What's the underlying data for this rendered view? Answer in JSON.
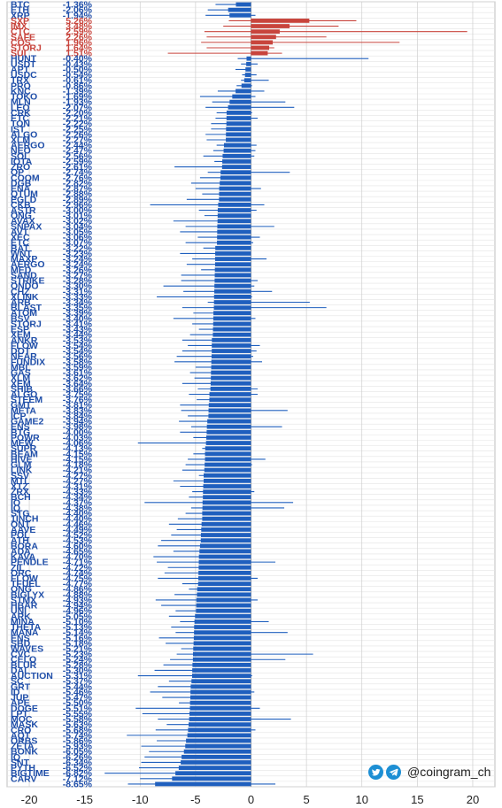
{
  "chart_data": {
    "type": "bar",
    "orientation": "horizontal",
    "unit": "%",
    "xlim": [
      -22,
      22
    ],
    "xticks": [
      -20,
      -15,
      -10,
      -5,
      0,
      5,
      10,
      15,
      20
    ],
    "grid": true,
    "positive_color": "#c8443c",
    "negative_color": "#1f5fbe",
    "label_color_negative": "#1f4ea8",
    "label_color_positive": "#c8443c",
    "categories": [
      "BTC",
      "ETH",
      "XRP",
      "SXP",
      "IMX",
      "CTC",
      "SAFE",
      "COS",
      "STORJ",
      "SUI",
      "HUNT",
      "USDT",
      "APT",
      "USDC",
      "TRX",
      "PRO",
      "KNC",
      "TOKO",
      "MLN",
      "LEO",
      "CRK",
      "ETC",
      "TON",
      "IST",
      "ALGO",
      "XLM",
      "AERGO",
      "NEO",
      "SOL",
      "IOTA",
      "ZRO",
      "OP",
      "COOM",
      "DGB",
      "ENA",
      "QTUM",
      "EGLD",
      "CKB",
      "ASTR",
      "ONG",
      "AVAX",
      "SNPAX",
      "AVT",
      "XEC",
      "ETC",
      "BAT",
      "WNT",
      "MAXP",
      "AERGO",
      "MED",
      "SAND",
      "STRIKE",
      "ONDO",
      "CHZ",
      "XLINK",
      "ARB",
      "BLAST",
      "ATOM",
      "BSV",
      "STORJ",
      "ESP",
      "XEM",
      "ANKR",
      "FLOW",
      "DOT",
      "NEAR",
      "FUNDIX",
      "MBL",
      "GAS",
      "XLM",
      "XEM",
      "SHIB",
      "ALGO",
      "STEEM",
      "GMT",
      "META",
      "ICP",
      "GAME2",
      "ENS",
      "BTG",
      "POWR",
      "MEW",
      "SUPR",
      "BEAM",
      "HIVE",
      "GLM",
      "LINK",
      "SSV",
      "MTL",
      "XTZ",
      "ZRX",
      "BCH",
      "IO",
      "IQ",
      "STG",
      "1INCH",
      "ONT",
      "AAVE",
      "POL",
      "ATH",
      "BORA",
      "ADA",
      "KAVA",
      "PENDLE",
      "ZIL",
      "ORC",
      "FLOW",
      "TFUEL",
      "ONG",
      "BIGLYX",
      "STMX",
      "HBAR",
      "UNI",
      "ARK",
      "MINA",
      "THETA",
      "MANA",
      "ENS",
      "SBD",
      "WAVES",
      "CVC",
      "CELO",
      "BLUR",
      "DAI",
      "AUCTION",
      "SC",
      "GRT",
      "ID",
      "JUP",
      "APE",
      "DOGE",
      "LPT",
      "MOC",
      "MASK",
      "CRO",
      "AQT",
      "ORBS",
      "ZETA",
      "BONK",
      "IQ",
      "SNT",
      "PYTH",
      "BIGTIME",
      "CARV"
    ],
    "values": [
      -1.36,
      -2.06,
      -1.94,
      5.26,
      3.48,
      2.59,
      2.26,
      1.96,
      1.64,
      1.51,
      -0.4,
      -0.43,
      -0.5,
      -0.54,
      -0.61,
      -0.86,
      -1.39,
      -1.69,
      -1.93,
      -2.07,
      -2.2,
      -2.21,
      -2.22,
      -2.25,
      -2.26,
      -2.27,
      -2.44,
      -2.47,
      -2.56,
      -2.59,
      -2.61,
      -2.74,
      -2.76,
      -2.82,
      -2.87,
      -2.88,
      -2.89,
      -2.96,
      -3.0,
      -3.01,
      -3.02,
      -3.04,
      -3.05,
      -3.06,
      -3.07,
      -3.22,
      -3.23,
      -3.24,
      -3.24,
      -3.26,
      -3.27,
      -3.28,
      -3.3,
      -3.31,
      -3.33,
      -3.34,
      -3.35,
      -3.39,
      -3.4,
      -3.41,
      -3.43,
      -3.44,
      -3.53,
      -3.54,
      -3.54,
      -3.56,
      -3.58,
      -3.59,
      -3.61,
      -3.62,
      -3.64,
      -3.66,
      -3.75,
      -3.76,
      -3.81,
      -3.83,
      -3.84,
      -3.94,
      -3.98,
      -4.0,
      -4.03,
      -4.06,
      -4.13,
      -4.15,
      -4.15,
      -4.18,
      -4.21,
      -4.27,
      -4.27,
      -4.31,
      -4.33,
      -4.34,
      -4.37,
      -4.38,
      -4.4,
      -4.4,
      -4.46,
      -4.49,
      -4.52,
      -4.53,
      -4.6,
      -4.65,
      -4.7,
      -4.71,
      -4.72,
      -4.74,
      -4.75,
      -4.77,
      -4.86,
      -4.88,
      -4.93,
      -4.94,
      -4.96,
      -5.05,
      -5.1,
      -5.13,
      -5.14,
      -5.16,
      -5.18,
      -5.21,
      -5.23,
      -5.24,
      -5.28,
      -5.3,
      -5.31,
      -5.37,
      -5.44,
      -5.46,
      -5.47,
      -5.5,
      -5.51,
      -5.55,
      -5.58,
      -5.63,
      -5.68,
      -5.74,
      -5.86,
      -5.93,
      -6.05,
      -6.26,
      -6.34,
      -6.52,
      -6.82,
      -7.12,
      -8.65
    ],
    "labels": [
      "-1.36%",
      "-2.06%",
      "-1.94%",
      "5.26%",
      "3.48%",
      "2.59%",
      "2.26%",
      "1.96%",
      "1.64%",
      "1.51%",
      "-0.40%",
      "-0.43%",
      "-0.50%",
      "-0.54%",
      "-0.61%",
      "-0.86%",
      "-1.39%",
      "-1.69%",
      "-1.93%",
      "-2.07%",
      "-2.20%",
      "-2.21%",
      "-2.22%",
      "-2.25%",
      "-2.26%",
      "-2.27%",
      "-2.44%",
      "-2.47%",
      "-2.56%",
      "-2.59%",
      "-2.61%",
      "-2.74%",
      "-2.76%",
      "-2.82%",
      "-2.87%",
      "-2.88%",
      "-2.89%",
      "-2.96%",
      "-3.00%",
      "-3.01%",
      "-3.02%",
      "-3.04%",
      "-3.05%",
      "-3.06%",
      "-3.07%",
      "-3.22%",
      "-3.23%",
      "-3.24%",
      "-3.24%",
      "-3.26%",
      "-3.27%",
      "-3.28%",
      "-3.30%",
      "-3.31%",
      "-3.33%",
      "-3.34%",
      "-3.35%",
      "-3.39%",
      "-3.40%",
      "-3.41%",
      "-3.43%",
      "-3.44%",
      "-3.53%",
      "-3.54%",
      "-3.54%",
      "-3.56%",
      "-3.58%",
      "-3.59%",
      "-3.61%",
      "-3.62%",
      "-3.64%",
      "-3.66%",
      "-3.75%",
      "-3.76%",
      "-3.81%",
      "-3.83%",
      "-3.84%",
      "-3.94%",
      "-3.98%",
      "-4.00%",
      "-4.03%",
      "-4.06%",
      "-4.13%",
      "-4.15%",
      "-4.15%",
      "-4.18%",
      "-4.21%",
      "-4.27%",
      "-4.27%",
      "-4.31%",
      "-4.33%",
      "-4.34%",
      "-4.37%",
      "-4.38%",
      "-4.40%",
      "-4.40%",
      "-4.46%",
      "-4.49%",
      "-4.52%",
      "-4.53%",
      "-4.60%",
      "-4.65%",
      "-4.70%",
      "-4.71%",
      "-4.72%",
      "-4.74%",
      "-4.75%",
      "-4.77%",
      "-4.86%",
      "-4.88%",
      "-4.93%",
      "-4.94%",
      "-4.96%",
      "-5.05%",
      "-5.10%",
      "-5.13%",
      "-5.14%",
      "-5.16%",
      "-5.18%",
      "-5.21%",
      "-5.23%",
      "-5.24%",
      "-5.28%",
      "-5.30%",
      "-5.31%",
      "-5.37%",
      "-5.44%",
      "-5.46%",
      "-5.47%",
      "-5.50%",
      "-5.51%",
      "-5.55%",
      "-5.58%",
      "-5.63%",
      "-5.68%",
      "-5.74%",
      "-5.86%",
      "-5.93%",
      "-6.05%",
      "-6.26%",
      "-6.34%",
      "-6.52%",
      "-6.82%",
      "-7.12%",
      "-8.65%"
    ],
    "range_low": [
      -3.2,
      -3.9,
      -4.1,
      -2.0,
      -2.5,
      -4.2,
      -4.0,
      -4.5,
      -4.0,
      -7.5,
      -1.2,
      -0.9,
      -1.4,
      -0.8,
      -0.9,
      -1.3,
      -3.0,
      -4.6,
      -3.5,
      -4.1,
      -3.1,
      -3.2,
      -3.6,
      -3.6,
      -4.1,
      -4.0,
      -3.1,
      -3.4,
      -4.3,
      -3.3,
      -6.9,
      -3.9,
      -4.6,
      -5.4,
      -5.0,
      -4.4,
      -5.8,
      -9.1,
      -4.7,
      -4.2,
      -7.0,
      -5.9,
      -6.4,
      -4.8,
      -5.9,
      -4.3,
      -6.4,
      -5.3,
      -5.8,
      -4.5,
      -6.3,
      -6.3,
      -7.9,
      -6.1,
      -8.5,
      -3.9,
      -6.2,
      -5.2,
      -7.0,
      -5.3,
      -4.7,
      -5.5,
      -6.2,
      -5.7,
      -6.2,
      -6.7,
      -6.9,
      -5.0,
      -5.5,
      -5.1,
      -6.2,
      -4.8,
      -5.6,
      -4.9,
      -6.4,
      -6.3,
      -5.7,
      -6.5,
      -5.4,
      -6.4,
      -5.2,
      -10.2,
      -4.4,
      -5.2,
      -5.7,
      -5.9,
      -6.2,
      -4.7,
      -7.0,
      -6.4,
      -5.3,
      -5.6,
      -9.6,
      -5.4,
      -5.9,
      -6.6,
      -7.4,
      -6.7,
      -7.2,
      -8.1,
      -8.4,
      -7.0,
      -8.8,
      -8.5,
      -7.5,
      -7.8,
      -8.4,
      -6.2,
      -5.6,
      -6.9,
      -8.6,
      -8.1,
      -6.8,
      -7.4,
      -6.4,
      -7.2,
      -6.8,
      -8.3,
      -7.7,
      -6.3,
      -6.7,
      -7.3,
      -7.9,
      -8.7,
      -10.2,
      -7.4,
      -8.4,
      -9.1,
      -8.0,
      -6.5,
      -10.4,
      -9.8,
      -8.4,
      -7.6,
      -8.6,
      -11.2,
      -8.5,
      -9.9,
      -9.2,
      -9.6,
      -9.9,
      -10.1,
      -13.2,
      -10.0,
      -11.1,
      -10.5,
      -14.1,
      -11.7
    ],
    "range_high": [
      -0.5,
      -0.3,
      0.4,
      9.5,
      7.9,
      19.5,
      6.8,
      13.4,
      2.1,
      2.8,
      10.6,
      0.6,
      -0.2,
      0.5,
      1.6,
      0.1,
      1.2,
      0.4,
      3.1,
      3.9,
      0.1,
      0.6,
      -0.1,
      -0.5,
      -1.1,
      -0.2,
      0.5,
      0.4,
      0.3,
      -0.4,
      -0.6,
      3.5,
      -0.5,
      -0.7,
      0.9,
      -0.9,
      -1.0,
      1.2,
      0.5,
      -0.7,
      -0.5,
      2.1,
      -0.6,
      0.8,
      0.2,
      -0.4,
      -0.7,
      1.4,
      -1.1,
      -1.0,
      -0.6,
      0.6,
      0.3,
      1.9,
      0.1,
      5.3,
      6.8,
      -1.5,
      0.4,
      -1.1,
      -1.1,
      -0.3,
      -1.7,
      0.8,
      0.5,
      0.2,
      1.0,
      -1.6,
      -0.3,
      -1.9,
      -1.2,
      0.6,
      0.6,
      -1.9,
      -1.8,
      3.3,
      -0.5,
      -1.6,
      2.8,
      -0.4,
      -2.0,
      -0.9,
      -0.2,
      -0.6,
      1.3,
      0.1,
      -0.1,
      -1.5,
      -2.3,
      -1.2,
      0.3,
      -1.8,
      3.8,
      3.0,
      -1.2,
      -0.8,
      -1.4,
      -1.3,
      -1.4,
      -1.2,
      -1.8,
      -2.0,
      -2.7,
      2.2,
      -1.6,
      -1.7,
      0.6,
      -2.0,
      -0.1,
      -2.5,
      0.6,
      -1.6,
      -1.3,
      -0.1,
      1.6,
      -1.9,
      3.3,
      -2.2,
      -2.2,
      -2.5,
      5.6,
      3.1,
      -1.6,
      -2.6,
      0.1,
      -1.7,
      -0.4,
      0.3,
      -2.4,
      -0.8,
      0.8,
      -1.0,
      3.6,
      -1.7,
      0.4,
      -3.0,
      -1.9,
      -3.8,
      -2.6,
      -3.4,
      -3.3,
      -3.8,
      -3.6,
      -4.2,
      2.2,
      6.5
    ]
  },
  "watermark": {
    "handle": "@coingram_ch",
    "icons": [
      "twitter-icon",
      "telegram-icon"
    ]
  }
}
